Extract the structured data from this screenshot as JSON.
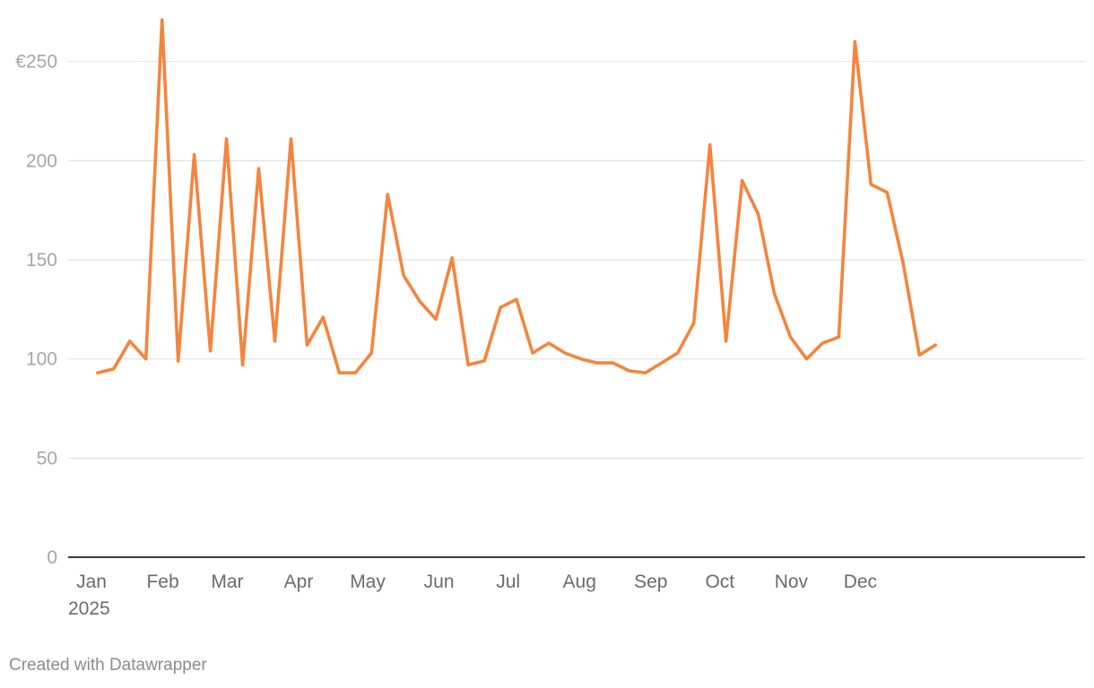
{
  "chart_data": {
    "type": "line",
    "title": "",
    "xlabel": "",
    "ylabel": "",
    "y_axis": {
      "ylim": [
        0,
        270
      ],
      "ticks": [
        0,
        50,
        100,
        150,
        200,
        250
      ],
      "tick_labels": [
        "0",
        "50",
        "100",
        "150",
        "200",
        "€250"
      ]
    },
    "x_axis": {
      "tick_labels": [
        "Jan",
        "Feb",
        "Mar",
        "Apr",
        "May",
        "Jun",
        "Jul",
        "Aug",
        "Sep",
        "Oct",
        "Nov",
        "Dec"
      ],
      "tick_dates": [
        "2025-01-01",
        "2025-02-01",
        "2025-03-01",
        "2025-04-01",
        "2025-05-01",
        "2025-06-01",
        "2025-07-01",
        "2025-08-01",
        "2025-09-01",
        "2025-10-01",
        "2025-11-01",
        "2025-12-01"
      ],
      "year_label": "2025",
      "xlim": [
        "2025-01-01",
        "2025-12-31"
      ]
    },
    "grid": true,
    "series": [
      {
        "color": "#f5843c",
        "points": [
          [
            "2025-01-06",
            93
          ],
          [
            "2025-01-13",
            95
          ],
          [
            "2025-01-20",
            109
          ],
          [
            "2025-01-27",
            100
          ],
          [
            "2025-02-03",
            271
          ],
          [
            "2025-02-10",
            99
          ],
          [
            "2025-02-17",
            203
          ],
          [
            "2025-02-24",
            104
          ],
          [
            "2025-03-03",
            211
          ],
          [
            "2025-03-10",
            97
          ],
          [
            "2025-03-17",
            196
          ],
          [
            "2025-03-24",
            109
          ],
          [
            "2025-03-31",
            211
          ],
          [
            "2025-04-07",
            107
          ],
          [
            "2025-04-14",
            121
          ],
          [
            "2025-04-21",
            93
          ],
          [
            "2025-04-28",
            93
          ],
          [
            "2025-05-05",
            103
          ],
          [
            "2025-05-12",
            183
          ],
          [
            "2025-05-19",
            142
          ],
          [
            "2025-05-26",
            129
          ],
          [
            "2025-06-02",
            120
          ],
          [
            "2025-06-09",
            151
          ],
          [
            "2025-06-16",
            97
          ],
          [
            "2025-06-23",
            99
          ],
          [
            "2025-06-30",
            126
          ],
          [
            "2025-07-07",
            130
          ],
          [
            "2025-07-14",
            103
          ],
          [
            "2025-07-21",
            108
          ],
          [
            "2025-07-28",
            103
          ],
          [
            "2025-08-04",
            100
          ],
          [
            "2025-08-11",
            98
          ],
          [
            "2025-08-18",
            98
          ],
          [
            "2025-08-25",
            94
          ],
          [
            "2025-09-01",
            93
          ],
          [
            "2025-09-08",
            98
          ],
          [
            "2025-09-15",
            103
          ],
          [
            "2025-09-22",
            118
          ],
          [
            "2025-09-29",
            208
          ],
          [
            "2025-10-06",
            109
          ],
          [
            "2025-10-13",
            190
          ],
          [
            "2025-10-20",
            173
          ],
          [
            "2025-10-27",
            133
          ],
          [
            "2025-11-03",
            111
          ],
          [
            "2025-11-10",
            100
          ],
          [
            "2025-11-17",
            108
          ],
          [
            "2025-11-24",
            111
          ],
          [
            "2025-12-01",
            260
          ],
          [
            "2025-12-08",
            188
          ],
          [
            "2025-12-15",
            184
          ],
          [
            "2025-12-22",
            148
          ],
          [
            "2025-12-29",
            102
          ],
          [
            "2026-01-05",
            107
          ]
        ]
      }
    ]
  },
  "footer": {
    "credit": "Created with Datawrapper"
  }
}
